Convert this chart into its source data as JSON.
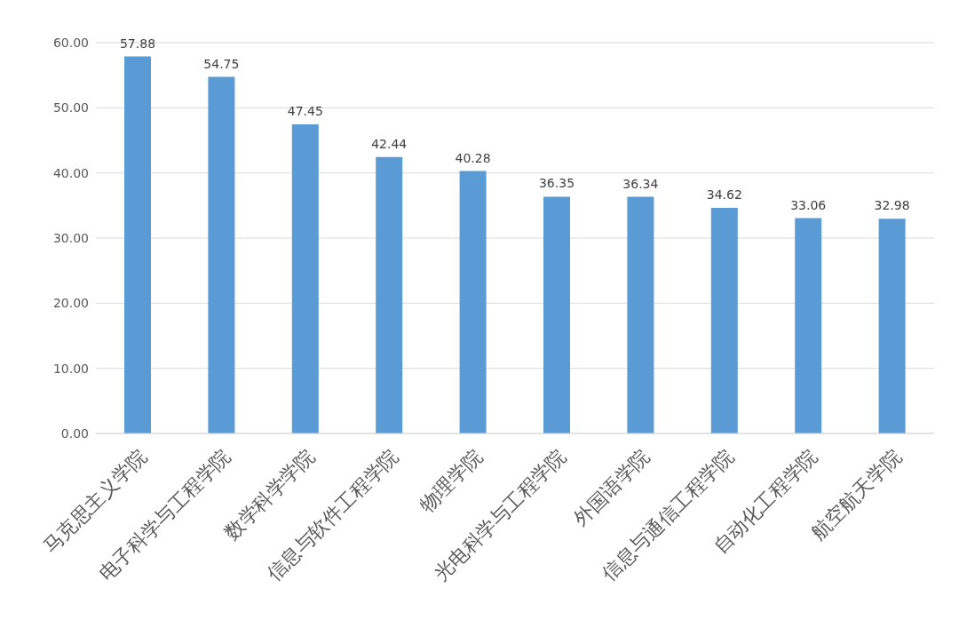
{
  "chart_data": {
    "type": "bar",
    "categories": [
      "马克思主义学院",
      "电子科学与工程学院",
      "数学科学学院",
      "信息与软件工程学院",
      "物理学院",
      "光电科学与工程学院",
      "外国语学院",
      "信息与通信工程学院",
      "自动化工程学院",
      "航空航天学院"
    ],
    "values": [
      57.88,
      54.75,
      47.45,
      42.44,
      40.28,
      36.35,
      36.34,
      34.62,
      33.06,
      32.98
    ],
    "color": "#5b9bd5",
    "ylim": [
      0,
      60
    ],
    "yticks": [
      {
        "value": 0,
        "label": "0.00"
      },
      {
        "value": 10,
        "label": "10.00"
      },
      {
        "value": 20,
        "label": "20.00"
      },
      {
        "value": 30,
        "label": "30.00"
      },
      {
        "value": 40,
        "label": "40.00"
      },
      {
        "value": 50,
        "label": "50.00"
      },
      {
        "value": 60,
        "label": "60.00"
      }
    ],
    "grid": "y",
    "data_labels": true
  }
}
